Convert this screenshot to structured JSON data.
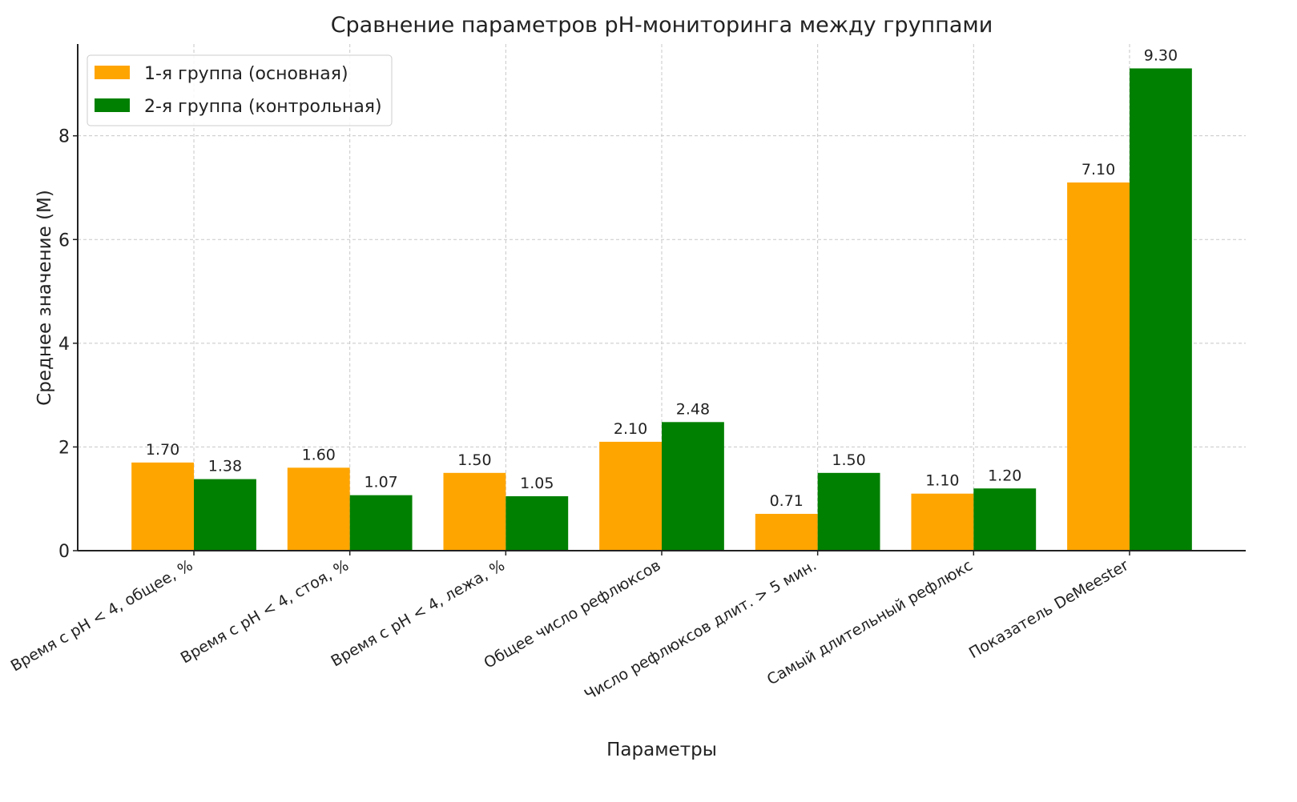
{
  "chart_data": {
    "type": "bar",
    "title": "Сравнение параметров pH-мониторинга между группами",
    "xlabel": "Параметры",
    "ylabel": "Среднее значение (M)",
    "categories": [
      "Время с pH < 4, общее, %",
      "Время с pH < 4, стоя, %",
      "Время с pH < 4, лежа, %",
      "Общее число рефлюксов",
      "Число рефлюксов длит. > 5 мин.",
      "Самый длительный рефлюкс",
      "Показатель DeMeester"
    ],
    "series": [
      {
        "name": "1-я группа (основная)",
        "color": "#FFA500",
        "values": [
          1.7,
          1.6,
          1.5,
          2.1,
          0.71,
          1.1,
          7.1
        ],
        "labels": [
          "1.70",
          "1.60",
          "1.50",
          "2.10",
          "0.71",
          "1.10",
          "7.10"
        ]
      },
      {
        "name": "2-я группа (контрольная)",
        "color": "#008000",
        "values": [
          1.38,
          1.07,
          1.05,
          2.48,
          1.5,
          1.2,
          9.3
        ],
        "labels": [
          "1.38",
          "1.07",
          "1.05",
          "2.48",
          "1.50",
          "1.20",
          "9.30"
        ]
      }
    ],
    "yticks": [
      "0",
      "2",
      "4",
      "6",
      "8"
    ],
    "ylim": [
      0,
      9.77
    ],
    "grid": true,
    "legend_position": "top-left"
  }
}
